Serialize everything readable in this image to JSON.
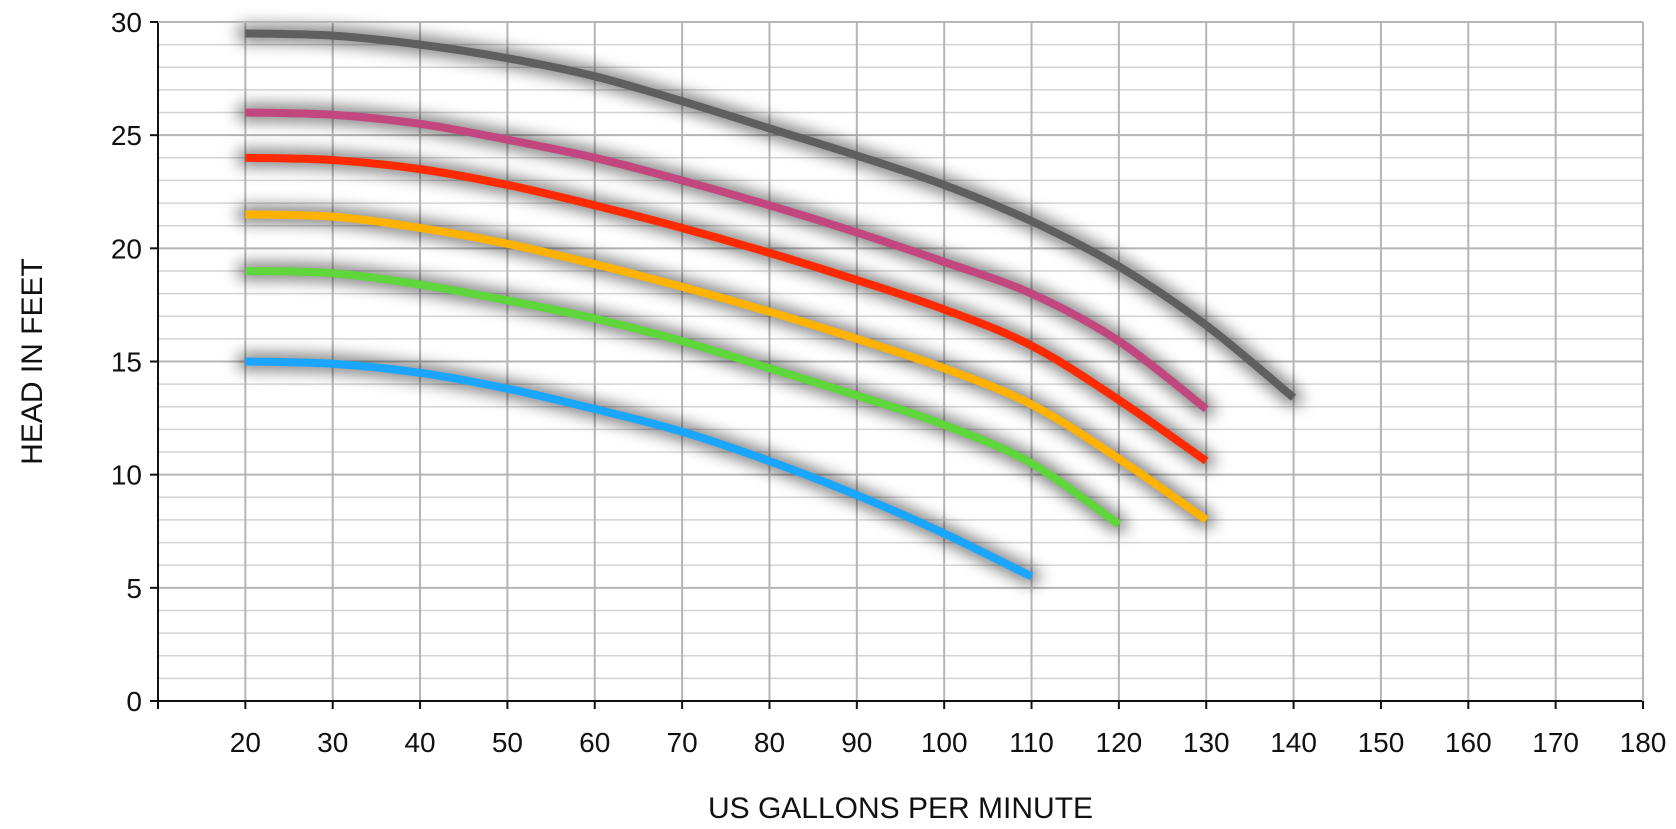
{
  "chart_data": {
    "type": "line",
    "title": "",
    "xlabel": "US GALLONS PER MINUTE",
    "ylabel": "HEAD IN FEET",
    "xlim": [
      10,
      180
    ],
    "ylim": [
      0,
      30
    ],
    "x_ticks": [
      20,
      30,
      40,
      50,
      60,
      70,
      80,
      90,
      100,
      110,
      120,
      130,
      140,
      150,
      160,
      170,
      180
    ],
    "y_ticks": [
      0,
      5,
      10,
      15,
      20,
      25,
      30
    ],
    "grid": true,
    "legend": "none",
    "series": [
      {
        "color": "#5f5f5f",
        "x": [
          20,
          30,
          40,
          50,
          60,
          70,
          80,
          90,
          100,
          110,
          120,
          130,
          140
        ],
        "y": [
          29.5,
          29.4,
          29.0,
          28.4,
          27.6,
          26.5,
          25.3,
          24.1,
          22.8,
          21.2,
          19.2,
          16.6,
          13.4
        ]
      },
      {
        "color": "#c2477f",
        "x": [
          20,
          30,
          40,
          50,
          60,
          70,
          80,
          90,
          100,
          110,
          120,
          130
        ],
        "y": [
          26.0,
          25.9,
          25.5,
          24.8,
          24.0,
          23.0,
          21.9,
          20.7,
          19.4,
          18.0,
          15.9,
          12.9
        ]
      },
      {
        "color": "#ff2a00",
        "x": [
          20,
          30,
          40,
          50,
          60,
          70,
          80,
          90,
          100,
          110,
          120,
          130
        ],
        "y": [
          24.0,
          23.9,
          23.5,
          22.8,
          21.9,
          20.9,
          19.8,
          18.6,
          17.3,
          15.7,
          13.3,
          10.6
        ]
      },
      {
        "color": "#ffb300",
        "x": [
          20,
          30,
          40,
          50,
          60,
          70,
          80,
          90,
          100,
          110,
          120,
          130
        ],
        "y": [
          21.5,
          21.4,
          20.9,
          20.2,
          19.3,
          18.3,
          17.2,
          16.0,
          14.7,
          13.1,
          10.7,
          8.0
        ]
      },
      {
        "color": "#5fd63c",
        "x": [
          20,
          30,
          40,
          50,
          60,
          70,
          80,
          90,
          100,
          110,
          120
        ],
        "y": [
          19.0,
          18.9,
          18.4,
          17.7,
          16.9,
          15.9,
          14.7,
          13.5,
          12.2,
          10.5,
          7.8
        ]
      },
      {
        "color": "#1aa6ff",
        "x": [
          20,
          30,
          40,
          50,
          60,
          70,
          80,
          90,
          100,
          110
        ],
        "y": [
          15.0,
          14.9,
          14.5,
          13.8,
          12.9,
          11.9,
          10.6,
          9.1,
          7.4,
          5.5
        ]
      }
    ]
  }
}
